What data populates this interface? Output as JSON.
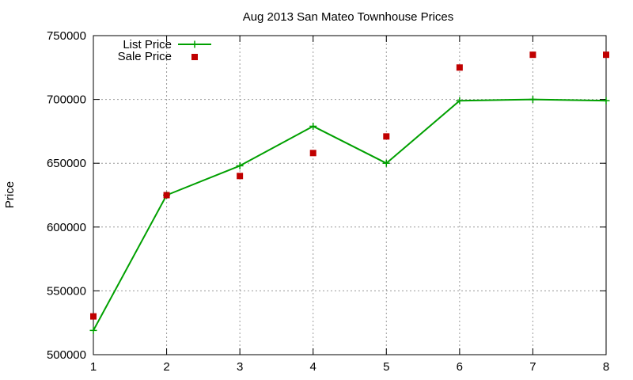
{
  "chart_data": {
    "type": "line",
    "title": "Aug 2013 San Mateo Townhouse Prices",
    "xlabel": "",
    "ylabel": "Price",
    "xlim": [
      1,
      8
    ],
    "ylim": [
      500000,
      750000
    ],
    "x_ticks": [
      "1",
      "2",
      "3",
      "4",
      "5",
      "6",
      "7",
      "8"
    ],
    "y_ticks": [
      "500000",
      "550000",
      "600000",
      "650000",
      "700000",
      "750000"
    ],
    "grid": true,
    "legend_position": "top-left",
    "series": [
      {
        "name": "List Price",
        "type": "line",
        "marker": "plus",
        "color": "#00a000",
        "x": [
          1,
          2,
          3,
          4,
          5,
          6,
          7,
          8
        ],
        "values": [
          519000,
          625000,
          648000,
          679000,
          650000,
          699000,
          700000,
          699000
        ]
      },
      {
        "name": "Sale Price",
        "type": "scatter",
        "marker": "square",
        "color": "#c00000",
        "x": [
          1,
          2,
          3,
          4,
          5,
          6,
          7,
          8
        ],
        "values": [
          530000,
          625000,
          640000,
          658000,
          671000,
          725000,
          735000,
          735000
        ]
      }
    ]
  }
}
